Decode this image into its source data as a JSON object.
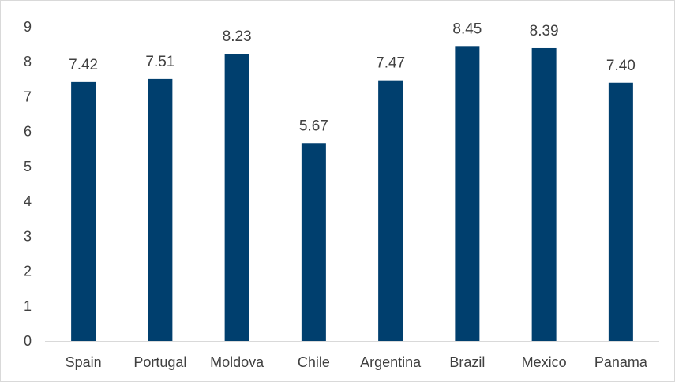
{
  "chart_data": {
    "type": "bar",
    "categories": [
      "Spain",
      "Portugal",
      "Moldova",
      "Chile",
      "Argentina",
      "Brazil",
      "Mexico",
      "Panama"
    ],
    "values": [
      7.42,
      7.51,
      8.23,
      5.67,
      7.47,
      8.45,
      8.39,
      7.4
    ],
    "data_labels": [
      "7.42",
      "7.51",
      "8.23",
      "5.67",
      "7.47",
      "8.45",
      "8.39",
      "7.40"
    ],
    "y_ticks": [
      "0",
      "1",
      "2",
      "3",
      "4",
      "5",
      "6",
      "7",
      "8",
      "9"
    ],
    "ylim": [
      0,
      9
    ],
    "grid": false,
    "legend": "none",
    "bar_color": "#003f6e"
  }
}
